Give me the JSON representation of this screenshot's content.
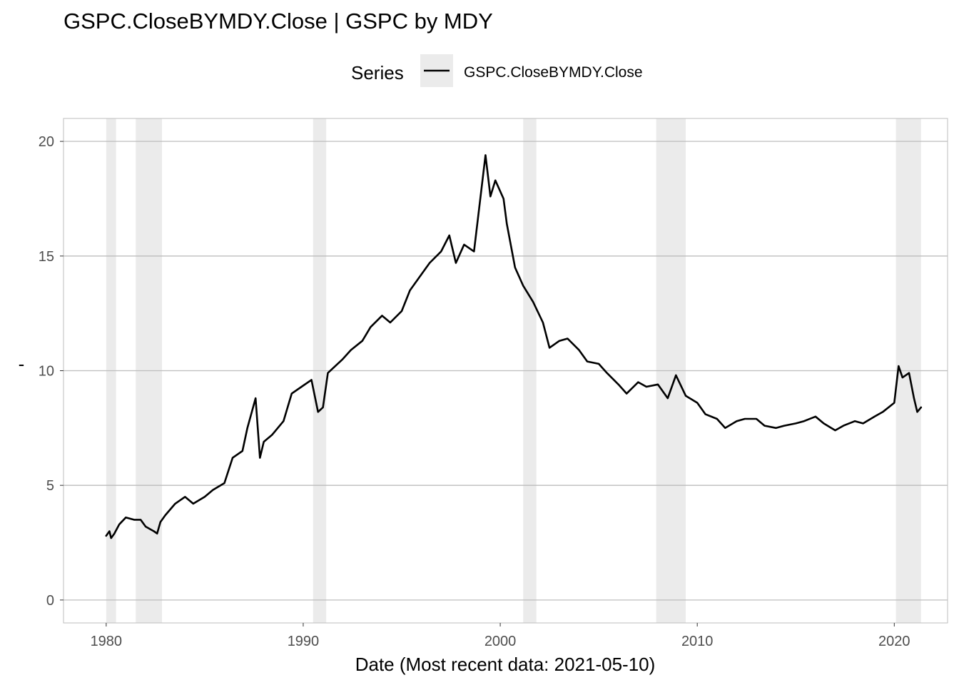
{
  "chart_data": {
    "type": "line",
    "title": "GSPC.CloseBYMDY.Close | GSPC by MDY",
    "xlabel": "Date (Most recent data: 2021-05-10)",
    "ylabel": "-",
    "legend": {
      "title": "Series",
      "position": "top",
      "entries": [
        "GSPC.CloseBYMDY.Close"
      ]
    },
    "x_range": [
      "1977-11-01",
      "2022-09-15"
    ],
    "ylim": [
      -1,
      21
    ],
    "x_ticks": [
      "1980",
      "1990",
      "2000",
      "2010",
      "2020"
    ],
    "y_ticks": [
      "0",
      "5",
      "10",
      "15",
      "20"
    ],
    "grid": true,
    "recession_bands": [
      [
        "1980-01-01",
        "1980-07-01"
      ],
      [
        "1981-07-01",
        "1982-11-01"
      ],
      [
        "1990-07-01",
        "1991-03-01"
      ],
      [
        "2001-03-01",
        "2001-11-01"
      ],
      [
        "2007-12-01",
        "2009-06-01"
      ],
      [
        "2020-02-01",
        "2021-05-10"
      ]
    ],
    "series": [
      {
        "name": "GSPC.CloseBYMDY.Close",
        "points": [
          [
            "1980-01-01",
            2.8
          ],
          [
            "1980-03-01",
            3.0
          ],
          [
            "1980-04-01",
            2.7
          ],
          [
            "1980-06-01",
            2.9
          ],
          [
            "1980-09-01",
            3.3
          ],
          [
            "1981-01-01",
            3.6
          ],
          [
            "1981-06-01",
            3.5
          ],
          [
            "1981-10-01",
            3.5
          ],
          [
            "1982-01-01",
            3.2
          ],
          [
            "1982-06-01",
            3.0
          ],
          [
            "1982-08-01",
            2.9
          ],
          [
            "1982-10-01",
            3.4
          ],
          [
            "1983-01-01",
            3.7
          ],
          [
            "1983-07-01",
            4.2
          ],
          [
            "1984-01-01",
            4.5
          ],
          [
            "1984-06-01",
            4.2
          ],
          [
            "1985-01-01",
            4.5
          ],
          [
            "1985-06-01",
            4.8
          ],
          [
            "1986-01-01",
            5.1
          ],
          [
            "1986-06-01",
            6.2
          ],
          [
            "1986-12-01",
            6.5
          ],
          [
            "1987-03-01",
            7.5
          ],
          [
            "1987-08-01",
            8.8
          ],
          [
            "1987-10-20",
            6.2
          ],
          [
            "1988-01-01",
            6.9
          ],
          [
            "1988-06-01",
            7.2
          ],
          [
            "1989-01-01",
            7.8
          ],
          [
            "1989-06-01",
            9.0
          ],
          [
            "1989-12-01",
            9.3
          ],
          [
            "1990-06-01",
            9.6
          ],
          [
            "1990-10-01",
            8.2
          ],
          [
            "1991-01-01",
            8.4
          ],
          [
            "1991-04-01",
            9.9
          ],
          [
            "1992-01-01",
            10.5
          ],
          [
            "1992-06-01",
            10.9
          ],
          [
            "1993-01-01",
            11.3
          ],
          [
            "1993-06-01",
            11.9
          ],
          [
            "1994-01-01",
            12.4
          ],
          [
            "1994-06-01",
            12.1
          ],
          [
            "1995-01-01",
            12.6
          ],
          [
            "1995-06-01",
            13.5
          ],
          [
            "1996-01-01",
            14.2
          ],
          [
            "1996-06-01",
            14.7
          ],
          [
            "1997-01-01",
            15.2
          ],
          [
            "1997-06-01",
            15.9
          ],
          [
            "1997-10-01",
            14.7
          ],
          [
            "1998-03-01",
            15.5
          ],
          [
            "1998-09-01",
            15.2
          ],
          [
            "1998-12-01",
            17.0
          ],
          [
            "1999-04-01",
            19.4
          ],
          [
            "1999-07-01",
            17.6
          ],
          [
            "1999-10-01",
            18.3
          ],
          [
            "2000-03-01",
            17.5
          ],
          [
            "2000-05-01",
            16.4
          ],
          [
            "2000-10-01",
            14.5
          ],
          [
            "2001-03-01",
            13.7
          ],
          [
            "2001-09-01",
            13.0
          ],
          [
            "2002-03-01",
            12.1
          ],
          [
            "2002-07-01",
            11.0
          ],
          [
            "2003-01-01",
            11.3
          ],
          [
            "2003-06-01",
            11.4
          ],
          [
            "2004-01-01",
            10.9
          ],
          [
            "2004-06-01",
            10.4
          ],
          [
            "2005-01-01",
            10.3
          ],
          [
            "2005-06-01",
            9.9
          ],
          [
            "2006-01-01",
            9.4
          ],
          [
            "2006-06-01",
            9.0
          ],
          [
            "2007-01-01",
            9.5
          ],
          [
            "2007-06-01",
            9.3
          ],
          [
            "2008-01-01",
            9.4
          ],
          [
            "2008-07-01",
            8.8
          ],
          [
            "2008-12-01",
            9.8
          ],
          [
            "2009-06-01",
            8.9
          ],
          [
            "2010-01-01",
            8.6
          ],
          [
            "2010-06-01",
            8.1
          ],
          [
            "2011-01-01",
            7.9
          ],
          [
            "2011-06-01",
            7.5
          ],
          [
            "2012-01-01",
            7.8
          ],
          [
            "2012-06-01",
            7.9
          ],
          [
            "2013-01-01",
            7.9
          ],
          [
            "2013-06-01",
            7.6
          ],
          [
            "2014-01-01",
            7.5
          ],
          [
            "2014-06-01",
            7.6
          ],
          [
            "2015-01-01",
            7.7
          ],
          [
            "2015-06-01",
            7.8
          ],
          [
            "2016-01-01",
            8.0
          ],
          [
            "2016-06-01",
            7.7
          ],
          [
            "2017-01-01",
            7.4
          ],
          [
            "2017-06-01",
            7.6
          ],
          [
            "2018-01-01",
            7.8
          ],
          [
            "2018-06-01",
            7.7
          ],
          [
            "2019-01-01",
            8.0
          ],
          [
            "2019-06-01",
            8.2
          ],
          [
            "2020-01-01",
            8.6
          ],
          [
            "2020-03-20",
            10.2
          ],
          [
            "2020-06-01",
            9.7
          ],
          [
            "2020-10-01",
            9.9
          ],
          [
            "2021-01-01",
            8.8
          ],
          [
            "2021-03-01",
            8.2
          ],
          [
            "2021-05-10",
            8.4
          ]
        ]
      }
    ]
  },
  "colors": {
    "line": "#000000",
    "band": "#ebebeb",
    "grid": "#bdbdbd",
    "panel_border": "#bdbdbd",
    "tick_label": "#4d4d4d",
    "legend_key_bg": "#ebebeb"
  }
}
